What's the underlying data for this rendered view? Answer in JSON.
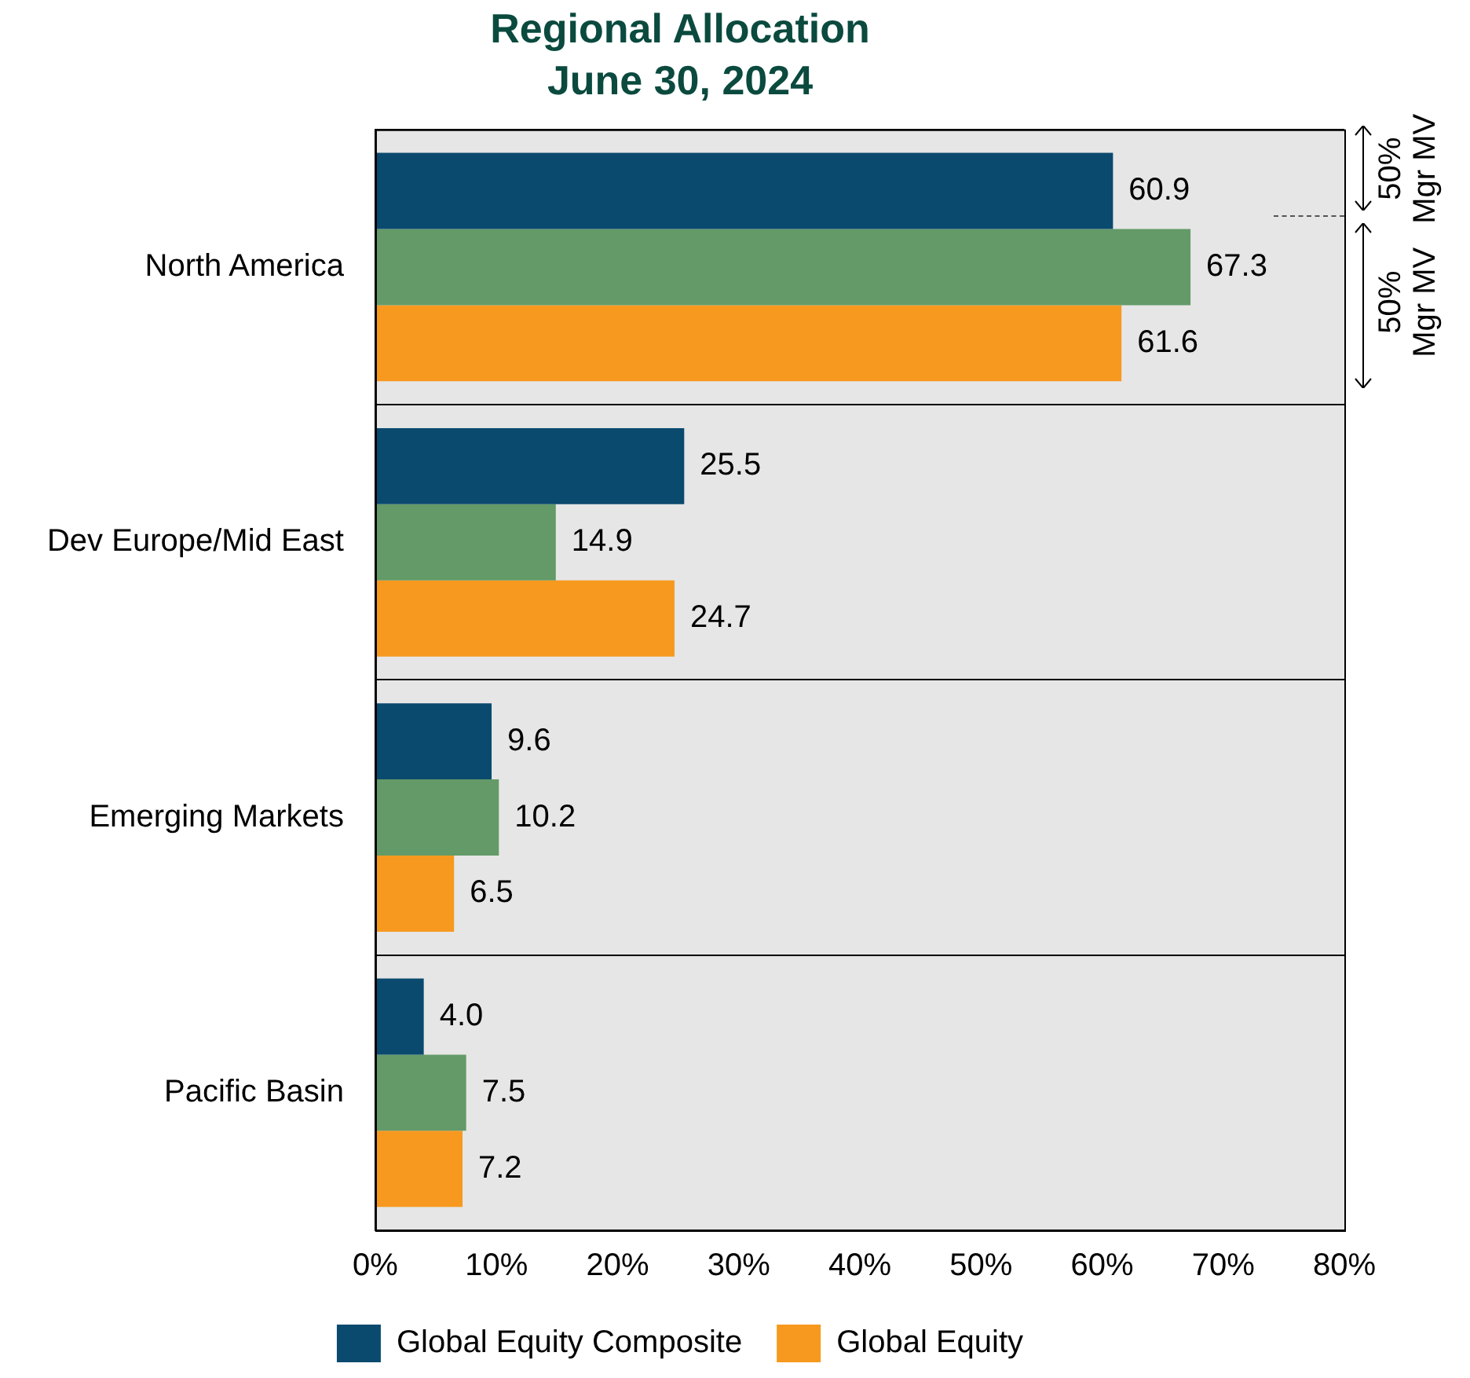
{
  "chart_data": {
    "type": "bar",
    "orientation": "horizontal",
    "title": "Regional Allocation",
    "subtitle": "June 30, 2024",
    "categories": [
      "North America",
      "Dev Europe/Mid East",
      "Emerging Markets",
      "Pacific Basin"
    ],
    "series": [
      {
        "name": "Global Equity Composite",
        "color": "#0b4a6f",
        "values": [
          60.9,
          25.5,
          9.6,
          4.0
        ],
        "value_labels": [
          "60.9",
          "25.5",
          "9.6",
          "4.0"
        ]
      },
      {
        "color": "#639a67",
        "values": [
          67.3,
          14.9,
          10.2,
          7.5
        ],
        "value_labels": [
          "67.3",
          "14.9",
          "10.2",
          "7.5"
        ]
      },
      {
        "name": "Global Equity",
        "color": "#f7991f",
        "values": [
          61.6,
          24.7,
          6.5,
          7.2
        ],
        "value_labels": [
          "61.6",
          "24.7",
          "6.5",
          "7.2"
        ]
      }
    ],
    "xlim": [
      0,
      80
    ],
    "xticks": [
      {
        "value": 0,
        "label": "0%"
      },
      {
        "value": 10,
        "label": "10%"
      },
      {
        "value": 20,
        "label": "20%"
      },
      {
        "value": 30,
        "label": "30%"
      },
      {
        "value": 40,
        "label": "40%"
      },
      {
        "value": 50,
        "label": "50%"
      },
      {
        "value": 60,
        "label": "60%"
      },
      {
        "value": 70,
        "label": "70%"
      },
      {
        "value": 80,
        "label": "80%"
      }
    ],
    "grid": "y",
    "legend": "bottom",
    "annotations": [
      "50% Mgr MV",
      "50% Mgr MV"
    ]
  }
}
